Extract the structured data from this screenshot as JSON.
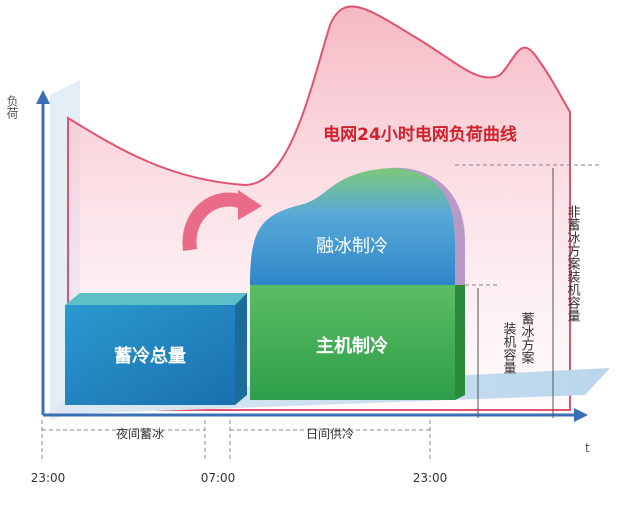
{
  "axes": {
    "y_label": "负荷",
    "x_label": "t"
  },
  "curve_title": "电网24小时电网负荷曲线",
  "blocks": {
    "melt": "融冰制冷",
    "chiller": "主机制冷",
    "storage": "蓄冷总量"
  },
  "periods": [
    {
      "label": "夜间蓄冰"
    },
    {
      "label": "日间供冷"
    }
  ],
  "times": [
    "23:00",
    "07:00",
    "23:00"
  ],
  "capacities": {
    "non_ice": "非蓄冰方案装机容量",
    "ice": [
      "蓄冰方案",
      "装机容量"
    ]
  }
}
